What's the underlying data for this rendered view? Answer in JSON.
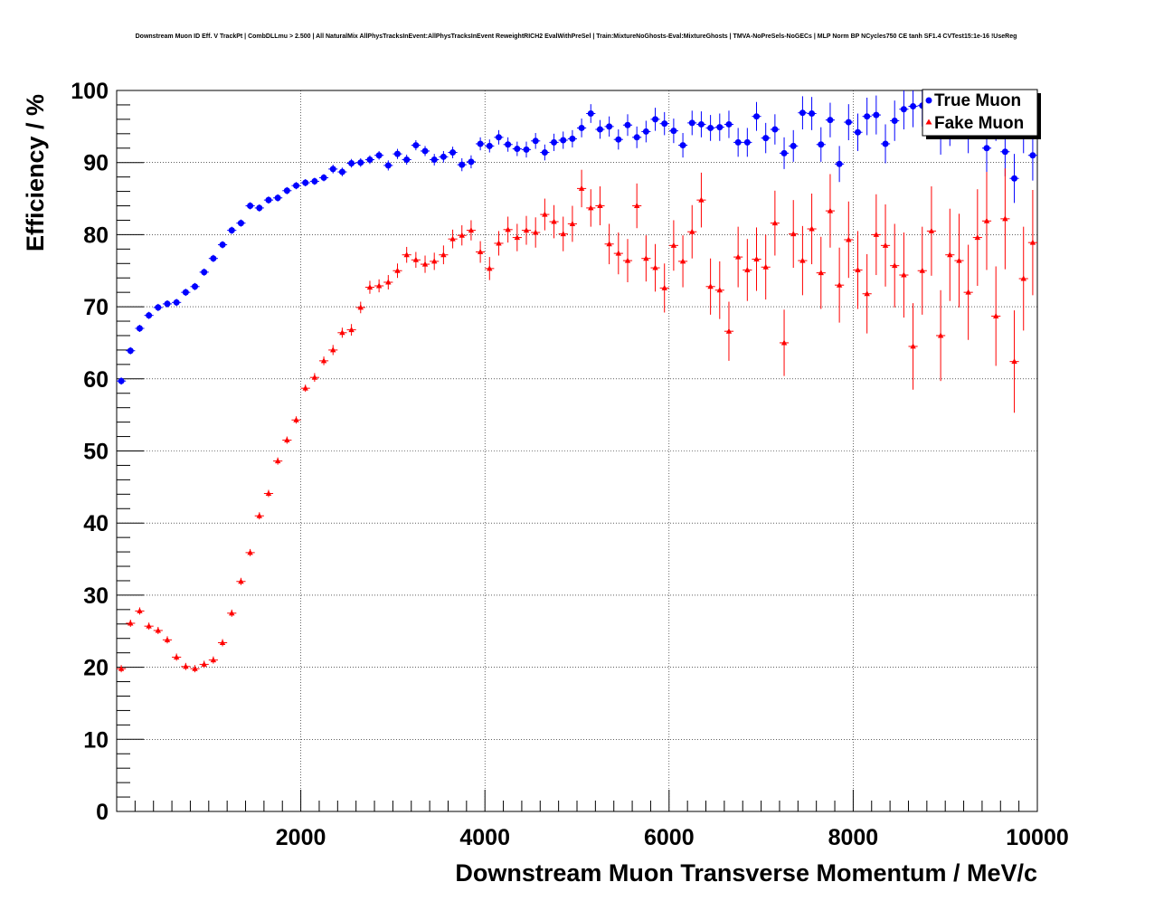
{
  "chart_data": {
    "type": "scatter",
    "title": "Downstream Muon ID Eff. V TrackPt | CombDLLmu > 2.500 | All NaturalMix AllPhysTracksInEvent:AllPhysTracksInEvent ReweightRICH2 EvalWithPreSel | Train:MixtureNoGhosts-Eval:MixtureGhosts | TMVA-NoPreSels-NoGECs | MLP Norm BP NCycles750 CE tanh SF1.4 CVTest15:1e-16 !UseReg",
    "xlabel": "Downstream Muon Transverse Momentum / MeV/c",
    "ylabel": "Efficiency / %",
    "xlim": [
      0,
      10000
    ],
    "ylim": [
      0,
      100
    ],
    "xticks": [
      2000,
      4000,
      6000,
      8000,
      10000
    ],
    "yticks": [
      0,
      10,
      20,
      30,
      40,
      50,
      60,
      70,
      80,
      90,
      100
    ],
    "grid": true,
    "legend_position": "top-right",
    "series": [
      {
        "name": "True Muon",
        "color": "#0000ff",
        "marker": "circle",
        "x": [
          50,
          150,
          250,
          350,
          450,
          550,
          650,
          750,
          850,
          950,
          1050,
          1150,
          1250,
          1350,
          1450,
          1550,
          1650,
          1750,
          1850,
          1950,
          2050,
          2150,
          2250,
          2350,
          2450,
          2550,
          2650,
          2750,
          2850,
          2950,
          3050,
          3150,
          3250,
          3350,
          3450,
          3550,
          3650,
          3750,
          3850,
          3950,
          4050,
          4150,
          4250,
          4350,
          4450,
          4550,
          4650,
          4750,
          4850,
          4950,
          5050,
          5150,
          5250,
          5350,
          5450,
          5550,
          5650,
          5750,
          5850,
          5950,
          6050,
          6150,
          6250,
          6350,
          6450,
          6550,
          6650,
          6750,
          6850,
          6950,
          7050,
          7150,
          7250,
          7350,
          7450,
          7550,
          7650,
          7750,
          7850,
          7950,
          8050,
          8150,
          8250,
          8350,
          8450,
          8550,
          8650,
          8750,
          8850,
          8950,
          9050,
          9150,
          9250,
          9350,
          9450,
          9550,
          9650,
          9750,
          9850,
          9950
        ],
        "y": [
          59.7,
          63.9,
          67.0,
          68.8,
          69.9,
          70.4,
          70.6,
          72.0,
          72.8,
          74.8,
          76.7,
          78.6,
          80.6,
          81.6,
          84.0,
          83.7,
          84.8,
          85.1,
          86.1,
          86.8,
          87.2,
          87.4,
          87.9,
          89.1,
          88.7,
          89.9,
          90.0,
          90.4,
          91.0,
          89.6,
          91.2,
          90.4,
          92.4,
          91.6,
          90.4,
          90.8,
          91.4,
          89.7,
          90.1,
          92.6,
          92.3,
          93.5,
          92.5,
          91.9,
          91.8,
          93.0,
          91.4,
          92.8,
          93.1,
          93.3,
          94.8,
          96.8,
          94.6,
          95.0,
          93.2,
          95.2,
          93.5,
          94.3,
          96.0,
          95.4,
          94.4,
          92.4,
          95.5,
          95.3,
          94.8,
          94.9,
          95.3,
          92.8,
          92.8,
          96.4,
          93.4,
          94.6,
          91.3,
          92.3,
          96.9,
          96.8,
          92.5,
          95.9,
          89.8,
          95.6,
          94.2,
          96.4,
          96.6,
          92.6,
          95.8,
          97.4,
          97.8,
          97.9,
          96.6,
          94.1,
          95.4,
          96.4,
          94.5,
          96.7,
          92.0,
          96.3,
          91.5,
          87.8,
          94.8,
          91.0
        ],
        "y_err": [
          0.5,
          0.5,
          0.5,
          0.5,
          0.5,
          0.5,
          0.5,
          0.5,
          0.5,
          0.5,
          0.5,
          0.5,
          0.5,
          0.5,
          0.5,
          0.5,
          0.5,
          0.5,
          0.5,
          0.5,
          0.5,
          0.5,
          0.5,
          0.6,
          0.6,
          0.6,
          0.6,
          0.6,
          0.6,
          0.7,
          0.7,
          0.7,
          0.7,
          0.7,
          0.8,
          0.8,
          0.8,
          0.9,
          0.9,
          0.9,
          0.9,
          1.0,
          1.0,
          1.0,
          1.1,
          1.1,
          1.1,
          1.2,
          1.2,
          1.2,
          1.3,
          1.3,
          1.3,
          1.4,
          1.4,
          1.5,
          1.5,
          1.5,
          1.6,
          1.6,
          1.7,
          1.7,
          1.7,
          1.8,
          1.8,
          1.9,
          1.9,
          2.0,
          2.0,
          2.0,
          2.1,
          2.1,
          2.2,
          2.2,
          2.3,
          2.3,
          2.4,
          2.4,
          2.5,
          2.5,
          2.6,
          2.6,
          2.7,
          2.7,
          2.8,
          2.8,
          2.9,
          2.9,
          3.0,
          3.0,
          3.1,
          3.1,
          3.2,
          3.2,
          3.3,
          3.3,
          3.4,
          3.4,
          3.5,
          3.5
        ]
      },
      {
        "name": "Fake Muon",
        "color": "#ff0000",
        "marker": "triangle",
        "x": [
          50,
          150,
          250,
          350,
          450,
          550,
          650,
          750,
          850,
          950,
          1050,
          1150,
          1250,
          1350,
          1450,
          1550,
          1650,
          1750,
          1850,
          1950,
          2050,
          2150,
          2250,
          2350,
          2450,
          2550,
          2650,
          2750,
          2850,
          2950,
          3050,
          3150,
          3250,
          3350,
          3450,
          3550,
          3650,
          3750,
          3850,
          3950,
          4050,
          4150,
          4250,
          4350,
          4450,
          4550,
          4650,
          4750,
          4850,
          4950,
          5050,
          5150,
          5250,
          5350,
          5450,
          5550,
          5650,
          5750,
          5850,
          5950,
          6050,
          6150,
          6250,
          6350,
          6450,
          6550,
          6650,
          6750,
          6850,
          6950,
          7050,
          7150,
          7250,
          7350,
          7450,
          7550,
          7650,
          7750,
          7850,
          7950,
          8050,
          8150,
          8250,
          8350,
          8450,
          8550,
          8650,
          8750,
          8850,
          8950,
          9050,
          9150,
          9250,
          9350,
          9450,
          9550,
          9650,
          9750,
          9850,
          9950
        ],
        "y": [
          19.8,
          26.1,
          27.8,
          25.7,
          25.1,
          23.8,
          21.4,
          20.1,
          19.8,
          20.4,
          21.0,
          23.4,
          27.5,
          31.9,
          35.9,
          41.0,
          44.1,
          48.6,
          51.5,
          54.3,
          58.7,
          60.2,
          62.5,
          64.0,
          66.4,
          66.8,
          69.9,
          72.7,
          72.9,
          73.4,
          75.0,
          77.2,
          76.5,
          75.9,
          76.3,
          77.2,
          79.4,
          79.9,
          80.6,
          77.6,
          75.3,
          78.8,
          80.7,
          79.6,
          80.6,
          80.3,
          82.8,
          81.8,
          80.1,
          81.5,
          86.4,
          83.7,
          84.0,
          78.7,
          77.4,
          76.4,
          84.0,
          76.7,
          75.4,
          72.6,
          78.5,
          76.3,
          80.4,
          84.8,
          72.8,
          72.3,
          66.6,
          76.9,
          75.1,
          76.6,
          75.5,
          81.6,
          65.0,
          80.1,
          76.4,
          80.8,
          74.7,
          83.3,
          73.0,
          79.3,
          75.1,
          71.8,
          80.0,
          78.5,
          75.7,
          74.4,
          64.5,
          75.0,
          80.5,
          66.0,
          77.2,
          76.4,
          72.0,
          79.6,
          81.9,
          68.7,
          82.2,
          62.4,
          73.9,
          78.9
        ],
        "y_err": [
          0.5,
          0.5,
          0.5,
          0.5,
          0.5,
          0.5,
          0.5,
          0.5,
          0.5,
          0.5,
          0.5,
          0.5,
          0.5,
          0.5,
          0.5,
          0.5,
          0.5,
          0.5,
          0.5,
          0.5,
          0.5,
          0.6,
          0.6,
          0.7,
          0.7,
          0.8,
          0.8,
          0.9,
          0.9,
          1.0,
          1.0,
          1.1,
          1.1,
          1.2,
          1.2,
          1.3,
          1.3,
          1.4,
          1.4,
          1.5,
          1.6,
          1.7,
          1.8,
          1.9,
          2.0,
          2.1,
          2.2,
          2.3,
          2.4,
          2.5,
          2.6,
          2.6,
          2.7,
          2.8,
          2.9,
          3.0,
          3.1,
          3.2,
          3.3,
          3.4,
          3.5,
          3.6,
          3.7,
          3.8,
          3.9,
          4.0,
          4.1,
          4.2,
          4.3,
          4.4,
          4.5,
          4.5,
          4.6,
          4.7,
          4.8,
          4.9,
          5.0,
          5.1,
          5.2,
          5.3,
          5.4,
          5.5,
          5.6,
          5.7,
          5.8,
          5.9,
          6.0,
          6.1,
          6.2,
          6.3,
          6.4,
          6.5,
          6.6,
          6.7,
          6.8,
          6.9,
          7.0,
          7.1,
          7.2,
          7.3
        ]
      }
    ]
  }
}
